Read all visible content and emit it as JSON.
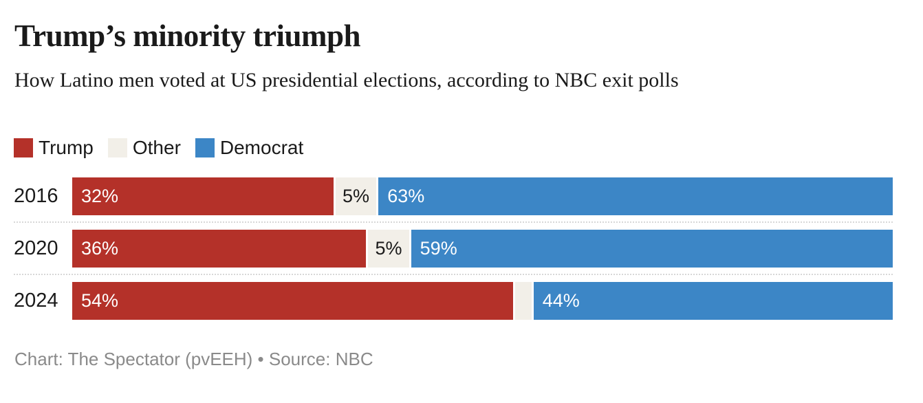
{
  "header": {
    "title": "Trump’s minority triumph",
    "subtitle": "How Latino men voted at US presidential elections, according to NBC exit polls"
  },
  "legend": {
    "items": [
      {
        "label": "Trump",
        "color": "#b43129"
      },
      {
        "label": "Other",
        "color": "#f2efe8"
      },
      {
        "label": "Democrat",
        "color": "#3c86c6"
      }
    ]
  },
  "chart_data": {
    "type": "bar",
    "orientation": "horizontal-stacked",
    "title": "Trump’s minority triumph",
    "subtitle": "How Latino men voted at US presidential elections, according to NBC exit polls",
    "unit": "%",
    "xlim": [
      0,
      100
    ],
    "grid": "off",
    "legend_position": "top-left",
    "categories": [
      "2016",
      "2020",
      "2024"
    ],
    "series": [
      {
        "name": "Trump",
        "color": "#b43129",
        "values": [
          32,
          36,
          54
        ]
      },
      {
        "name": "Other",
        "color": "#f2efe8",
        "values": [
          5,
          5,
          2
        ]
      },
      {
        "name": "Democrat",
        "color": "#3c86c6",
        "values": [
          63,
          59,
          44
        ]
      }
    ],
    "rows": [
      {
        "year": "2016",
        "trump": 32,
        "trump_label": "32%",
        "other": 5,
        "other_label": "5%",
        "democrat": 63,
        "democrat_label": "63%"
      },
      {
        "year": "2020",
        "trump": 36,
        "trump_label": "36%",
        "other": 5,
        "other_label": "5%",
        "democrat": 59,
        "democrat_label": "59%"
      },
      {
        "year": "2024",
        "trump": 54,
        "trump_label": "54%",
        "other": 2,
        "other_label": "",
        "democrat": 44,
        "democrat_label": "44%"
      }
    ]
  },
  "footer": {
    "text": "Chart: The Spectator (pvEEH) • Source: NBC"
  }
}
